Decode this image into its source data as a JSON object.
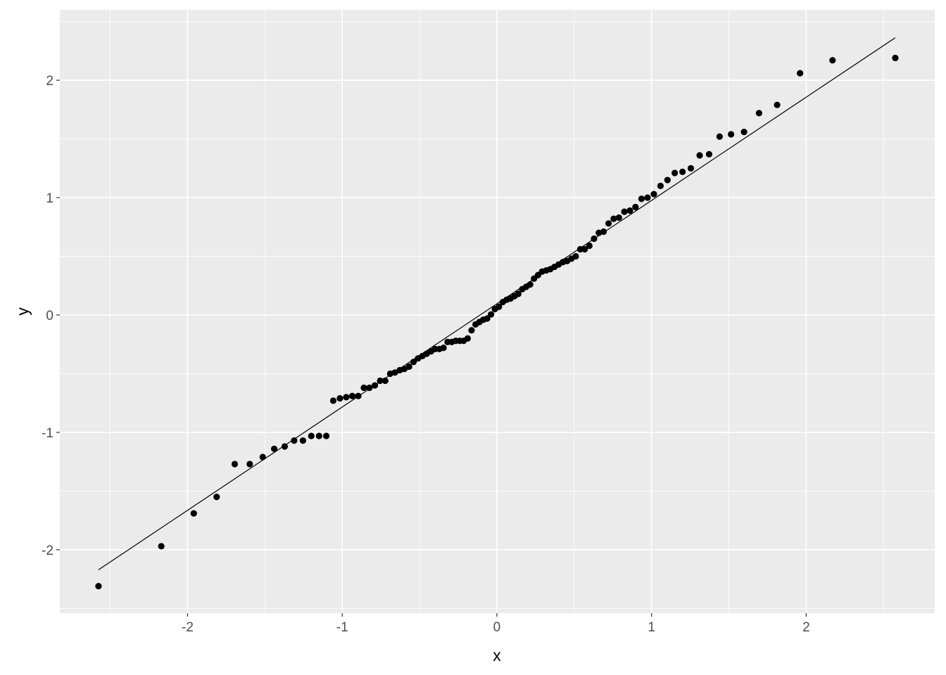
{
  "chart_data": {
    "type": "scatter",
    "title": "",
    "xlabel": "x",
    "ylabel": "y",
    "xlim": [
      -2.826,
      2.831
    ],
    "ylim": [
      -2.54,
      2.6
    ],
    "grid": true,
    "background": "#ebebeb",
    "point_color": "#000000",
    "x_ticks": [
      -2,
      -1,
      0,
      1,
      2
    ],
    "x_tick_labels": [
      "-2",
      "-1",
      "0",
      "1",
      "2"
    ],
    "y_ticks": [
      -2,
      -1,
      0,
      1,
      2
    ],
    "y_tick_labels": [
      "-2",
      "-1",
      "0",
      "1",
      "2"
    ],
    "reference_line": {
      "intercept": 0.096,
      "slope": 0.88,
      "x_range": [
        -2.576,
        2.576
      ]
    },
    "x": [
      -2.576,
      -2.17,
      -1.96,
      -1.812,
      -1.695,
      -1.598,
      -1.514,
      -1.44,
      -1.372,
      -1.311,
      -1.254,
      -1.2,
      -1.15,
      -1.103,
      -1.058,
      -1.015,
      -0.974,
      -0.935,
      -0.896,
      -0.86,
      -0.824,
      -0.789,
      -0.755,
      -0.722,
      -0.69,
      -0.659,
      -0.628,
      -0.598,
      -0.568,
      -0.539,
      -0.51,
      -0.482,
      -0.454,
      -0.426,
      -0.399,
      -0.372,
      -0.345,
      -0.319,
      -0.292,
      -0.266,
      -0.24,
      -0.215,
      -0.189,
      -0.164,
      -0.138,
      -0.113,
      -0.088,
      -0.063,
      -0.038,
      -0.013,
      0.013,
      0.038,
      0.063,
      0.088,
      0.113,
      0.138,
      0.164,
      0.189,
      0.215,
      0.24,
      0.266,
      0.292,
      0.319,
      0.345,
      0.372,
      0.399,
      0.426,
      0.454,
      0.482,
      0.51,
      0.539,
      0.568,
      0.598,
      0.628,
      0.659,
      0.69,
      0.722,
      0.755,
      0.789,
      0.824,
      0.86,
      0.896,
      0.935,
      0.974,
      1.015,
      1.058,
      1.103,
      1.15,
      1.2,
      1.254,
      1.311,
      1.372,
      1.44,
      1.514,
      1.598,
      1.695,
      1.812,
      1.96,
      2.17,
      2.576
    ],
    "y": [
      -2.31,
      -1.97,
      -1.69,
      -1.55,
      -1.27,
      -1.27,
      -1.21,
      -1.14,
      -1.12,
      -1.07,
      -1.07,
      -1.03,
      -1.03,
      -1.03,
      -0.73,
      -0.71,
      -0.7,
      -0.69,
      -0.69,
      -0.62,
      -0.62,
      -0.6,
      -0.56,
      -0.56,
      -0.5,
      -0.49,
      -0.47,
      -0.46,
      -0.44,
      -0.4,
      -0.37,
      -0.35,
      -0.33,
      -0.31,
      -0.29,
      -0.29,
      -0.28,
      -0.23,
      -0.23,
      -0.22,
      -0.22,
      -0.22,
      -0.2,
      -0.13,
      -0.08,
      -0.06,
      -0.04,
      -0.03,
      0.005,
      0.05,
      0.07,
      0.11,
      0.13,
      0.14,
      0.16,
      0.18,
      0.22,
      0.24,
      0.26,
      0.31,
      0.34,
      0.37,
      0.38,
      0.39,
      0.41,
      0.43,
      0.45,
      0.46,
      0.48,
      0.5,
      0.56,
      0.56,
      0.59,
      0.65,
      0.7,
      0.71,
      0.78,
      0.82,
      0.83,
      0.88,
      0.89,
      0.92,
      0.99,
      1.0,
      1.03,
      1.1,
      1.15,
      1.21,
      1.22,
      1.25,
      1.36,
      1.37,
      1.52,
      1.54,
      1.56,
      1.72,
      1.79,
      2.06,
      2.17,
      2.19
    ]
  }
}
